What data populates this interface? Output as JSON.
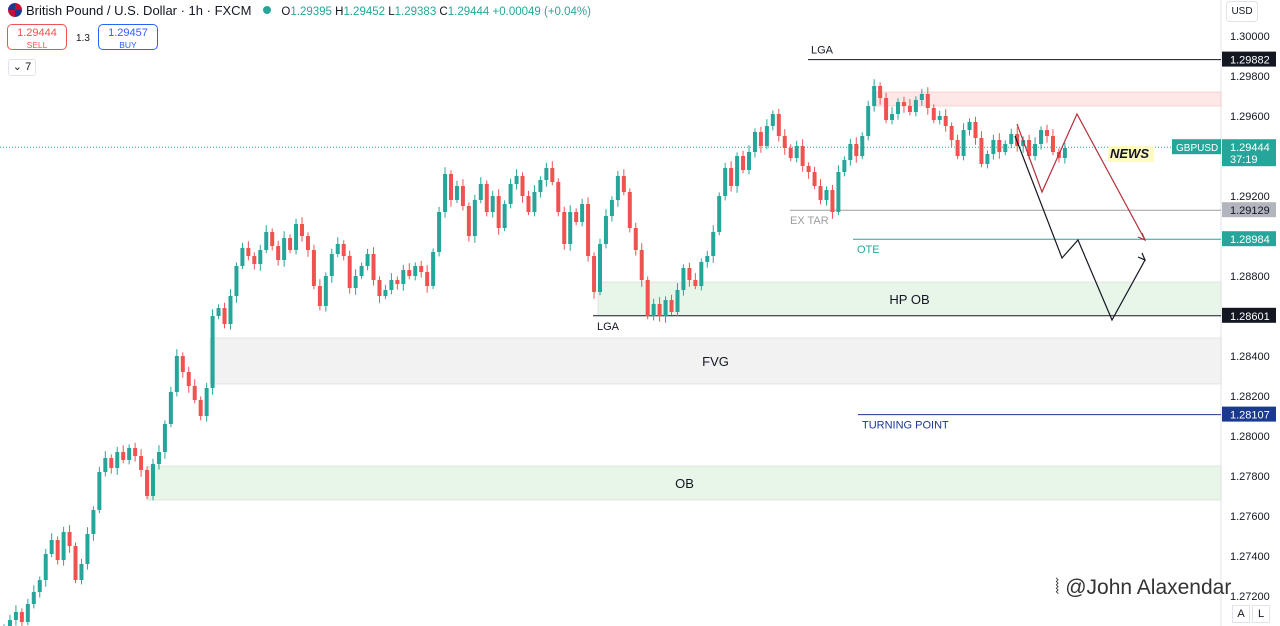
{
  "header": {
    "symbol": "British Pound / U.S. Dollar · 1h · FXCM",
    "open": "O",
    "open_val": "1.29395",
    "high": "H",
    "high_val": "1.29452",
    "low": "L",
    "low_val": "1.29383",
    "close": "C",
    "close_val": "1.29444",
    "change": "+0.00049 (+0.04%)"
  },
  "trade": {
    "sell_price": "1.29444",
    "sell_label": "SELL",
    "spread": "1.3",
    "buy_price": "1.29457",
    "buy_label": "BUY"
  },
  "indicators_count": "7",
  "currency": "USD",
  "bottom_buttons": [
    "A",
    "L"
  ],
  "watermark": "@John Alaxendar",
  "colors": {
    "up": "#26a69a",
    "down": "#ef5350",
    "accent": "#2962ff"
  },
  "chart_data": {
    "type": "candlestick",
    "symbol": "GBPUSD",
    "timeframe": "1h",
    "ylim": [
      1.2705,
      1.3018
    ],
    "y_ticks": [
      1.272,
      1.274,
      1.276,
      1.278,
      1.28,
      1.282,
      1.284,
      1.288,
      1.292,
      1.296,
      1.298,
      1.3
    ],
    "price_labels": [
      {
        "value": 1.29882,
        "text": "1.29882",
        "style": "black"
      },
      {
        "value": 1.29444,
        "text": "1.29444",
        "style": "green",
        "name": "GBPUSD",
        "timer": "37:19"
      },
      {
        "value": 1.29129,
        "text": "1.29129",
        "style": "gray"
      },
      {
        "value": 1.28984,
        "text": "1.28984",
        "style": "green"
      },
      {
        "value": 1.28601,
        "text": "1.28601",
        "style": "black"
      },
      {
        "value": 1.28107,
        "text": "1.28107",
        "style": "blue"
      }
    ],
    "levels": [
      {
        "value": 1.29882,
        "label": "LGA"
      },
      {
        "value": 1.29129,
        "label": "EX TAR"
      },
      {
        "value": 1.28984,
        "label": "OTE"
      },
      {
        "value": 1.28601,
        "label": "LGA"
      },
      {
        "value": 1.28107,
        "label": "TURNING POINT"
      }
    ],
    "zones": [
      {
        "label": "HP OB",
        "top": 1.2877,
        "bottom": 1.28601,
        "color": "green"
      },
      {
        "label": "FVG",
        "top": 1.2849,
        "bottom": 1.2826,
        "color": "gray"
      },
      {
        "label": "OB",
        "top": 1.2785,
        "bottom": 1.2768,
        "color": "green"
      },
      {
        "label": "",
        "top": 1.2972,
        "bottom": 1.2965,
        "color": "red"
      }
    ],
    "annotation": "NEWS",
    "close_series": [
      1.2704,
      1.2708,
      1.2712,
      1.2707,
      1.2716,
      1.2722,
      1.2728,
      1.2741,
      1.2748,
      1.2738,
      1.2752,
      1.2745,
      1.2728,
      1.2736,
      1.2751,
      1.2763,
      1.2782,
      1.2789,
      1.2784,
      1.2792,
      1.2788,
      1.2794,
      1.279,
      1.2783,
      1.277,
      1.2786,
      1.2792,
      1.2806,
      1.2822,
      1.284,
      1.2832,
      1.2825,
      1.2818,
      1.281,
      1.2824,
      1.286,
      1.2864,
      1.2856,
      1.287,
      1.2885,
      1.2894,
      1.289,
      1.2886,
      1.2893,
      1.2902,
      1.2895,
      1.2888,
      1.2899,
      1.2893,
      1.2906,
      1.29,
      1.2893,
      1.2875,
      1.2865,
      1.288,
      1.2891,
      1.2896,
      1.289,
      1.2874,
      1.288,
      1.2885,
      1.2891,
      1.2878,
      1.287,
      1.2873,
      1.2878,
      1.2876,
      1.2883,
      1.288,
      1.2885,
      1.2882,
      1.2875,
      1.2892,
      1.2912,
      1.2931,
      1.2918,
      1.2925,
      1.2915,
      1.29,
      1.2918,
      1.2926,
      1.2912,
      1.292,
      1.2904,
      1.2916,
      1.2926,
      1.293,
      1.292,
      1.2912,
      1.2922,
      1.2928,
      1.2934,
      1.2927,
      1.2912,
      1.2896,
      1.2912,
      1.2907,
      1.2916,
      1.289,
      1.2872,
      1.2896,
      1.291,
      1.2918,
      1.293,
      1.2922,
      1.2904,
      1.2893,
      1.2878,
      1.286,
      1.2866,
      1.286,
      1.2868,
      1.2862,
      1.2873,
      1.2884,
      1.2878,
      1.2875,
      1.2887,
      1.289,
      1.2902,
      1.292,
      1.2934,
      1.2925,
      1.294,
      1.2933,
      1.2942,
      1.2952,
      1.2945,
      1.2955,
      1.2961,
      1.295,
      1.2944,
      1.2939,
      1.2945,
      1.2935,
      1.2932,
      1.2925,
      1.2918,
      1.2923,
      1.2912,
      1.2932,
      1.2938,
      1.2946,
      1.294,
      1.295,
      1.2965,
      1.2975,
      1.2969,
      1.2958,
      1.2961,
      1.2967,
      1.2965,
      1.2962,
      1.2968,
      1.2971,
      1.2964,
      1.2958,
      1.296,
      1.2955,
      1.2948,
      1.294,
      1.2953,
      1.2957,
      1.2949,
      1.2936,
      1.2941,
      1.2948,
      1.2942,
      1.2946,
      1.2951,
      1.2945,
      1.2948,
      1.294,
      1.2946,
      1.2953,
      1.295,
      1.2942,
      1.2939,
      1.2944
    ],
    "projections": [
      {
        "color": "#b2303a",
        "points": [
          [
            1.2956
          ],
          [
            1.2922
          ],
          [
            1.2961
          ],
          [
            1.2898
          ]
        ]
      },
      {
        "color": "#131722",
        "points": [
          [
            1.295
          ],
          [
            1.2889
          ],
          [
            1.2898
          ],
          [
            1.2858
          ],
          [
            1.2888
          ]
        ]
      }
    ]
  }
}
